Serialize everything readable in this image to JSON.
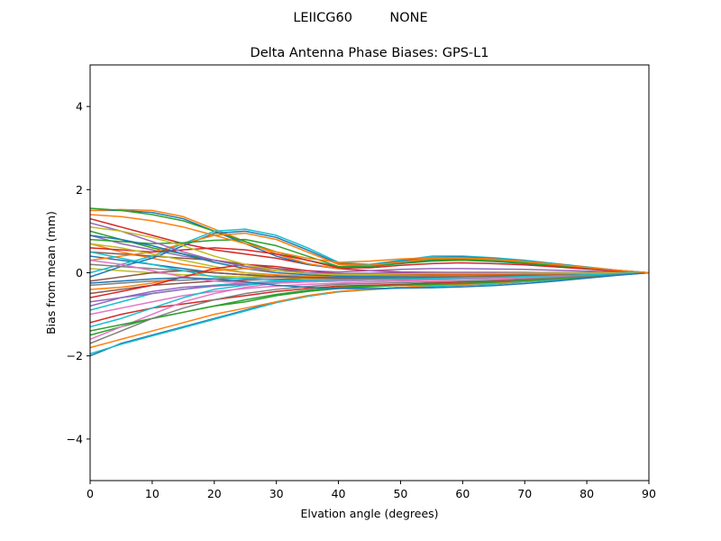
{
  "chart_data": {
    "type": "line",
    "suptitle": "LEIICG60         NONE",
    "title": "Delta Antenna Phase Biases: GPS-L1",
    "xlabel": "Elvation angle (degrees)",
    "ylabel": "Bias from mean (mm)",
    "xlim": [
      0,
      90
    ],
    "ylim": [
      -5,
      5
    ],
    "xticks": [
      0,
      10,
      20,
      30,
      40,
      50,
      60,
      70,
      80,
      90
    ],
    "yticks": [
      -4,
      -2,
      0,
      2,
      4
    ],
    "grid": false,
    "legend": "none",
    "x": [
      0,
      5,
      10,
      15,
      20,
      25,
      30,
      35,
      40,
      45,
      50,
      55,
      60,
      65,
      70,
      75,
      80,
      85,
      90
    ],
    "series": [
      {
        "color": "#1f77b4",
        "values": [
          -2.0,
          -1.7,
          -1.5,
          -1.3,
          -1.1,
          -0.9,
          -0.7,
          -0.55,
          -0.45,
          -0.4,
          -0.35,
          -0.32,
          -0.3,
          -0.27,
          -0.22,
          -0.17,
          -0.11,
          -0.05,
          0
        ]
      },
      {
        "color": "#17becf",
        "values": [
          -1.95,
          -1.72,
          -1.52,
          -1.32,
          -1.12,
          -0.92,
          -0.72,
          -0.57,
          -0.46,
          -0.41,
          -0.36,
          -0.33,
          -0.3,
          -0.27,
          -0.22,
          -0.17,
          -0.11,
          -0.05,
          0
        ]
      },
      {
        "color": "#ff7f0e",
        "values": [
          -1.8,
          -1.6,
          -1.4,
          -1.2,
          -1.0,
          -0.85,
          -0.7,
          -0.55,
          -0.45,
          -0.4,
          -0.35,
          -0.3,
          -0.28,
          -0.25,
          -0.2,
          -0.15,
          -0.1,
          -0.05,
          0
        ]
      },
      {
        "color": "#2ca02c",
        "values": [
          -1.5,
          -1.3,
          -1.1,
          -0.95,
          -0.8,
          -0.7,
          -0.55,
          -0.45,
          -0.38,
          -0.34,
          -0.3,
          -0.28,
          -0.25,
          -0.22,
          -0.18,
          -0.14,
          -0.09,
          -0.04,
          0
        ]
      },
      {
        "color": "#d62728",
        "values": [
          -1.2,
          -1.0,
          -0.85,
          -0.75,
          -0.65,
          -0.55,
          -0.45,
          -0.38,
          -0.32,
          -0.3,
          -0.28,
          -0.25,
          -0.22,
          -0.2,
          -0.16,
          -0.12,
          -0.08,
          -0.04,
          0
        ]
      },
      {
        "color": "#9467bd",
        "values": [
          -0.8,
          -0.6,
          -0.45,
          -0.35,
          -0.3,
          -0.25,
          -0.22,
          -0.2,
          -0.18,
          -0.16,
          -0.15,
          -0.14,
          -0.12,
          -0.11,
          -0.09,
          -0.07,
          -0.05,
          -0.02,
          0
        ]
      },
      {
        "color": "#8c564b",
        "values": [
          -0.5,
          -0.4,
          -0.3,
          -0.25,
          -0.2,
          -0.18,
          -0.16,
          -0.14,
          -0.13,
          -0.12,
          -0.11,
          -0.1,
          -0.09,
          -0.08,
          -0.07,
          -0.05,
          -0.03,
          -0.02,
          0
        ]
      },
      {
        "color": "#e377c2",
        "values": [
          -1.6,
          -1.3,
          -1.0,
          -0.7,
          -0.5,
          -0.35,
          -0.25,
          -0.2,
          -0.18,
          -0.16,
          -0.14,
          -0.12,
          -0.11,
          -0.1,
          -0.08,
          -0.06,
          -0.04,
          -0.02,
          0
        ]
      },
      {
        "color": "#7f7f7f",
        "values": [
          -0.3,
          -0.25,
          -0.2,
          -0.18,
          -0.15,
          -0.13,
          -0.11,
          -0.1,
          -0.09,
          -0.08,
          -0.07,
          -0.06,
          -0.05,
          -0.05,
          -0.04,
          -0.03,
          -0.02,
          -0.01,
          0
        ]
      },
      {
        "color": "#bcbd22",
        "values": [
          0.1,
          0.05,
          0.0,
          -0.05,
          -0.08,
          -0.1,
          -0.1,
          -0.1,
          -0.09,
          -0.08,
          -0.07,
          -0.06,
          -0.05,
          -0.05,
          -0.04,
          -0.03,
          -0.02,
          -0.01,
          0
        ]
      },
      {
        "color": "#17becf",
        "values": [
          -0.9,
          -0.7,
          -0.5,
          -0.4,
          -0.3,
          -0.25,
          -0.2,
          -0.18,
          -0.16,
          -0.15,
          -0.14,
          -0.13,
          -0.12,
          -0.11,
          -0.09,
          -0.07,
          -0.05,
          -0.02,
          0
        ]
      },
      {
        "color": "#1f77b4",
        "values": [
          0.4,
          0.3,
          0.2,
          0.1,
          0.0,
          -0.05,
          -0.08,
          -0.1,
          -0.1,
          -0.08,
          -0.06,
          -0.05,
          -0.04,
          -0.04,
          -0.03,
          -0.02,
          -0.02,
          -0.01,
          0
        ]
      },
      {
        "color": "#ff7f0e",
        "values": [
          0.7,
          0.5,
          0.35,
          0.2,
          0.1,
          0.0,
          -0.05,
          -0.08,
          -0.08,
          -0.06,
          -0.05,
          -0.04,
          -0.03,
          -0.03,
          -0.02,
          -0.02,
          -0.01,
          -0.01,
          0
        ]
      },
      {
        "color": "#2ca02c",
        "values": [
          1.0,
          0.8,
          0.6,
          0.45,
          0.3,
          0.15,
          0.05,
          0.0,
          -0.02,
          -0.02,
          -0.01,
          0.0,
          0.0,
          0.0,
          0.0,
          0.0,
          0.0,
          0.0,
          0
        ]
      },
      {
        "color": "#d62728",
        "values": [
          1.3,
          1.1,
          0.9,
          0.7,
          0.55,
          0.45,
          0.35,
          0.2,
          0.1,
          0.05,
          0.02,
          0.01,
          0.0,
          0.0,
          0.0,
          0.0,
          0.0,
          0.0,
          0
        ]
      },
      {
        "color": "#9467bd",
        "values": [
          0.9,
          0.7,
          0.55,
          0.4,
          0.3,
          0.2,
          0.1,
          0.05,
          0.02,
          0.05,
          0.08,
          0.1,
          0.1,
          0.09,
          0.08,
          0.06,
          0.04,
          0.02,
          0
        ]
      },
      {
        "color": "#8c564b",
        "values": [
          0.5,
          0.45,
          0.4,
          0.35,
          0.3,
          0.2,
          0.1,
          0.0,
          -0.05,
          -0.05,
          -0.05,
          -0.04,
          -0.04,
          -0.03,
          -0.03,
          -0.02,
          -0.01,
          -0.01,
          0
        ]
      },
      {
        "color": "#1f77b4",
        "values": [
          1.5,
          1.5,
          1.45,
          1.3,
          1.0,
          0.7,
          0.4,
          0.2,
          0.1,
          0.15,
          0.25,
          0.3,
          0.3,
          0.27,
          0.22,
          0.16,
          0.1,
          0.04,
          0
        ]
      },
      {
        "color": "#ff7f0e",
        "values": [
          1.5,
          1.52,
          1.5,
          1.35,
          1.05,
          0.75,
          0.45,
          0.22,
          0.1,
          0.17,
          0.28,
          0.33,
          0.33,
          0.3,
          0.25,
          0.18,
          0.11,
          0.05,
          0
        ]
      },
      {
        "color": "#2ca02c",
        "values": [
          1.55,
          1.5,
          1.4,
          1.25,
          1.0,
          0.75,
          0.5,
          0.3,
          0.15,
          0.18,
          0.27,
          0.32,
          0.32,
          0.29,
          0.24,
          0.17,
          0.11,
          0.05,
          0
        ]
      },
      {
        "color": "#17becf",
        "values": [
          0.0,
          0.2,
          0.4,
          0.7,
          1.0,
          1.05,
          0.9,
          0.6,
          0.25,
          0.2,
          0.3,
          0.4,
          0.4,
          0.36,
          0.3,
          0.22,
          0.14,
          0.06,
          0
        ]
      },
      {
        "color": "#1f77b4",
        "values": [
          -0.1,
          0.15,
          0.35,
          0.65,
          0.95,
          1.0,
          0.85,
          0.55,
          0.22,
          0.18,
          0.28,
          0.37,
          0.38,
          0.34,
          0.28,
          0.21,
          0.13,
          0.06,
          0
        ]
      },
      {
        "color": "#ff7f0e",
        "values": [
          0.3,
          0.4,
          0.5,
          0.7,
          0.9,
          0.95,
          0.8,
          0.5,
          0.2,
          0.18,
          0.26,
          0.34,
          0.35,
          0.32,
          0.27,
          0.2,
          0.12,
          0.05,
          0
        ]
      },
      {
        "color": "#2ca02c",
        "values": [
          0.8,
          0.75,
          0.7,
          0.72,
          0.78,
          0.8,
          0.65,
          0.4,
          0.15,
          0.15,
          0.22,
          0.28,
          0.3,
          0.28,
          0.23,
          0.17,
          0.11,
          0.05,
          0
        ]
      },
      {
        "color": "#d62728",
        "values": [
          0.6,
          0.55,
          0.5,
          0.55,
          0.6,
          0.55,
          0.45,
          0.3,
          0.12,
          0.12,
          0.18,
          0.22,
          0.24,
          0.22,
          0.19,
          0.14,
          0.09,
          0.04,
          0
        ]
      },
      {
        "color": "#9467bd",
        "values": [
          -0.7,
          -0.6,
          -0.5,
          -0.4,
          -0.32,
          -0.28,
          -0.25,
          -0.22,
          -0.2,
          -0.18,
          -0.17,
          -0.16,
          -0.15,
          -0.13,
          -0.11,
          -0.09,
          -0.06,
          -0.03,
          0
        ]
      },
      {
        "color": "#e377c2",
        "values": [
          -1.0,
          -0.85,
          -0.7,
          -0.55,
          -0.45,
          -0.38,
          -0.32,
          -0.28,
          -0.25,
          -0.22,
          -0.2,
          -0.18,
          -0.16,
          -0.14,
          -0.12,
          -0.09,
          -0.06,
          -0.03,
          0
        ]
      },
      {
        "color": "#7f7f7f",
        "values": [
          0.2,
          0.15,
          0.1,
          0.05,
          0.0,
          -0.05,
          -0.1,
          -0.12,
          -0.12,
          -0.11,
          -0.1,
          -0.09,
          -0.08,
          -0.07,
          -0.06,
          -0.04,
          -0.03,
          -0.01,
          0
        ]
      },
      {
        "color": "#bcbd22",
        "values": [
          0.7,
          0.6,
          0.45,
          0.3,
          0.15,
          0.0,
          -0.1,
          -0.15,
          -0.15,
          -0.14,
          -0.12,
          -0.11,
          -0.1,
          -0.09,
          -0.07,
          -0.05,
          -0.03,
          -0.02,
          0
        ]
      },
      {
        "color": "#17becf",
        "values": [
          -1.3,
          -1.1,
          -0.85,
          -0.6,
          -0.4,
          -0.3,
          -0.22,
          -0.18,
          -0.16,
          -0.15,
          -0.14,
          -0.13,
          -0.12,
          -0.11,
          -0.09,
          -0.07,
          -0.05,
          -0.02,
          0
        ]
      },
      {
        "color": "#1f77b4",
        "values": [
          0.9,
          0.8,
          0.65,
          0.45,
          0.25,
          0.1,
          0.0,
          -0.05,
          -0.08,
          -0.08,
          -0.07,
          -0.06,
          -0.05,
          -0.05,
          -0.04,
          -0.03,
          -0.02,
          -0.01,
          0
        ]
      },
      {
        "color": "#ff7f0e",
        "values": [
          -0.4,
          -0.35,
          -0.25,
          -0.1,
          0.05,
          0.1,
          0.05,
          0.0,
          -0.05,
          -0.06,
          -0.06,
          -0.05,
          -0.05,
          -0.04,
          -0.03,
          -0.03,
          -0.02,
          -0.01,
          0
        ]
      },
      {
        "color": "#2ca02c",
        "values": [
          -1.4,
          -1.25,
          -1.1,
          -0.95,
          -0.8,
          -0.65,
          -0.52,
          -0.42,
          -0.35,
          -0.32,
          -0.3,
          -0.28,
          -0.26,
          -0.23,
          -0.19,
          -0.15,
          -0.1,
          -0.05,
          0
        ]
      },
      {
        "color": "#d62728",
        "values": [
          -0.6,
          -0.45,
          -0.3,
          -0.1,
          0.1,
          0.2,
          0.15,
          0.05,
          -0.02,
          -0.04,
          -0.04,
          -0.03,
          -0.03,
          -0.03,
          -0.02,
          -0.02,
          -0.01,
          -0.01,
          0
        ]
      },
      {
        "color": "#9467bd",
        "values": [
          1.2,
          1.0,
          0.75,
          0.5,
          0.3,
          0.15,
          0.05,
          0.0,
          -0.02,
          -0.01,
          0.0,
          0.01,
          0.01,
          0.01,
          0.01,
          0.0,
          0.0,
          0.0,
          0
        ]
      },
      {
        "color": "#8c564b",
        "values": [
          -0.2,
          -0.1,
          0.0,
          0.05,
          0.0,
          -0.05,
          -0.1,
          -0.12,
          -0.13,
          -0.13,
          -0.12,
          -0.11,
          -0.1,
          -0.09,
          -0.07,
          -0.06,
          -0.04,
          -0.02,
          0
        ]
      },
      {
        "color": "#e377c2",
        "values": [
          0.3,
          0.2,
          0.05,
          -0.1,
          -0.2,
          -0.25,
          -0.25,
          -0.22,
          -0.2,
          -0.18,
          -0.16,
          -0.15,
          -0.13,
          -0.12,
          -0.1,
          -0.08,
          -0.05,
          -0.03,
          0
        ]
      },
      {
        "color": "#bcbd22",
        "values": [
          1.1,
          1.0,
          0.85,
          0.65,
          0.4,
          0.2,
          0.05,
          -0.02,
          -0.05,
          -0.04,
          -0.03,
          -0.02,
          -0.02,
          -0.02,
          -0.01,
          -0.01,
          -0.01,
          0.0,
          0
        ]
      },
      {
        "color": "#7f7f7f",
        "values": [
          -1.7,
          -1.4,
          -1.1,
          -0.85,
          -0.65,
          -0.5,
          -0.4,
          -0.33,
          -0.28,
          -0.26,
          -0.24,
          -0.22,
          -0.2,
          -0.18,
          -0.15,
          -0.12,
          -0.08,
          -0.04,
          0
        ]
      },
      {
        "color": "#17becf",
        "values": [
          0.5,
          0.35,
          0.2,
          0.05,
          -0.1,
          -0.15,
          -0.18,
          -0.18,
          -0.17,
          -0.16,
          -0.15,
          -0.14,
          -0.12,
          -0.11,
          -0.09,
          -0.07,
          -0.05,
          -0.02,
          0
        ]
      },
      {
        "color": "#1f77b4",
        "values": [
          -0.25,
          -0.2,
          -0.15,
          -0.12,
          -0.15,
          -0.22,
          -0.3,
          -0.35,
          -0.38,
          -0.38,
          -0.37,
          -0.36,
          -0.34,
          -0.31,
          -0.26,
          -0.2,
          -0.13,
          -0.06,
          0
        ]
      },
      {
        "color": "#ff7f0e",
        "values": [
          1.4,
          1.35,
          1.25,
          1.1,
          0.9,
          0.7,
          0.5,
          0.35,
          0.25,
          0.28,
          0.33,
          0.36,
          0.36,
          0.33,
          0.27,
          0.2,
          0.13,
          0.06,
          0
        ]
      }
    ]
  }
}
